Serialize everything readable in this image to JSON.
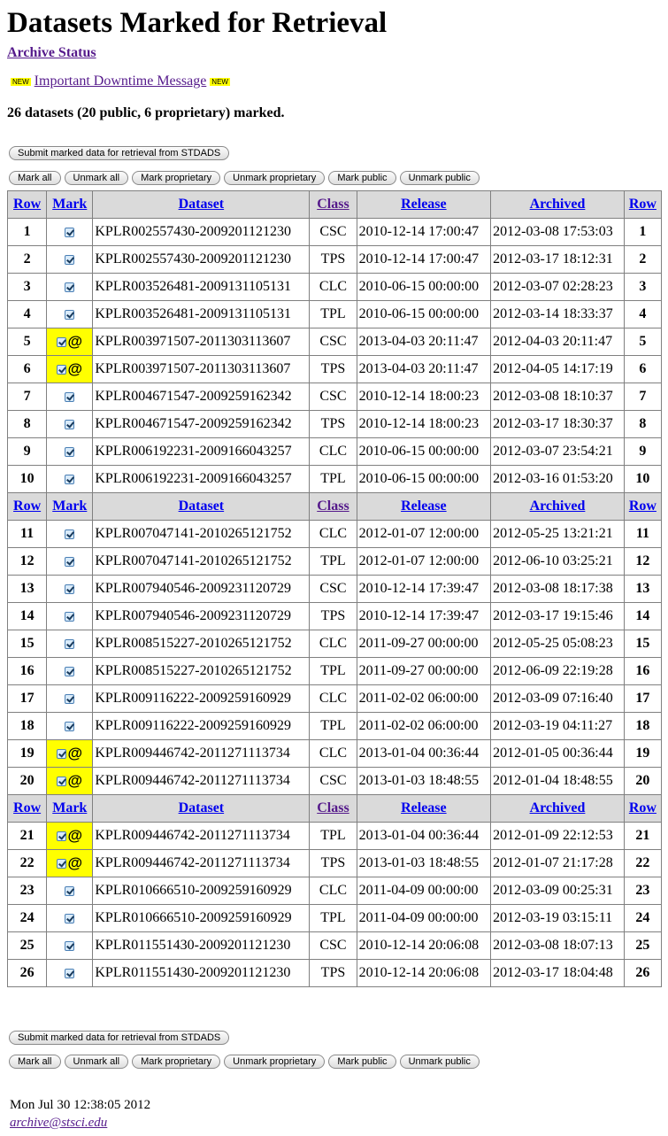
{
  "title": "Datasets Marked for Retrieval",
  "archive_status": "Archive Status",
  "downtime": {
    "badge": "NEW",
    "link": "Important Downtime Message"
  },
  "summary": "26 datasets (20 public, 6 proprietary) marked.",
  "buttons": {
    "submit": "Submit marked data for retrieval from STDADS",
    "mark_all": "Mark all",
    "unmark_all": "Unmark all",
    "mark_proprietary": "Mark proprietary",
    "unmark_proprietary": "Unmark proprietary",
    "mark_public": "Mark public",
    "unmark_public": "Unmark public"
  },
  "table": {
    "headers": [
      "Row",
      "Mark",
      "Dataset",
      "Class",
      "Release",
      "Archived",
      "Row"
    ],
    "rows": [
      {
        "row": "1",
        "proprietary": false,
        "dataset": "KPLR002557430-2009201121230",
        "class": "CSC",
        "release": "2010-12-14 17:00:47",
        "archived": "2012-03-08 17:53:03"
      },
      {
        "row": "2",
        "proprietary": false,
        "dataset": "KPLR002557430-2009201121230",
        "class": "TPS",
        "release": "2010-12-14 17:00:47",
        "archived": "2012-03-17 18:12:31"
      },
      {
        "row": "3",
        "proprietary": false,
        "dataset": "KPLR003526481-2009131105131",
        "class": "CLC",
        "release": "2010-06-15 00:00:00",
        "archived": "2012-03-07 02:28:23"
      },
      {
        "row": "4",
        "proprietary": false,
        "dataset": "KPLR003526481-2009131105131",
        "class": "TPL",
        "release": "2010-06-15 00:00:00",
        "archived": "2012-03-14 18:33:37"
      },
      {
        "row": "5",
        "proprietary": true,
        "dataset": "KPLR003971507-2011303113607",
        "class": "CSC",
        "release": "2013-04-03 20:11:47",
        "archived": "2012-04-03 20:11:47"
      },
      {
        "row": "6",
        "proprietary": true,
        "dataset": "KPLR003971507-2011303113607",
        "class": "TPS",
        "release": "2013-04-03 20:11:47",
        "archived": "2012-04-05 14:17:19"
      },
      {
        "row": "7",
        "proprietary": false,
        "dataset": "KPLR004671547-2009259162342",
        "class": "CSC",
        "release": "2010-12-14 18:00:23",
        "archived": "2012-03-08 18:10:37"
      },
      {
        "row": "8",
        "proprietary": false,
        "dataset": "KPLR004671547-2009259162342",
        "class": "TPS",
        "release": "2010-12-14 18:00:23",
        "archived": "2012-03-17 18:30:37"
      },
      {
        "row": "9",
        "proprietary": false,
        "dataset": "KPLR006192231-2009166043257",
        "class": "CLC",
        "release": "2010-06-15 00:00:00",
        "archived": "2012-03-07 23:54:21"
      },
      {
        "row": "10",
        "proprietary": false,
        "dataset": "KPLR006192231-2009166043257",
        "class": "TPL",
        "release": "2010-06-15 00:00:00",
        "archived": "2012-03-16 01:53:20"
      },
      {
        "row": "11",
        "proprietary": false,
        "dataset": "KPLR007047141-2010265121752",
        "class": "CLC",
        "release": "2012-01-07 12:00:00",
        "archived": "2012-05-25 13:21:21"
      },
      {
        "row": "12",
        "proprietary": false,
        "dataset": "KPLR007047141-2010265121752",
        "class": "TPL",
        "release": "2012-01-07 12:00:00",
        "archived": "2012-06-10 03:25:21"
      },
      {
        "row": "13",
        "proprietary": false,
        "dataset": "KPLR007940546-2009231120729",
        "class": "CSC",
        "release": "2010-12-14 17:39:47",
        "archived": "2012-03-08 18:17:38"
      },
      {
        "row": "14",
        "proprietary": false,
        "dataset": "KPLR007940546-2009231120729",
        "class": "TPS",
        "release": "2010-12-14 17:39:47",
        "archived": "2012-03-17 19:15:46"
      },
      {
        "row": "15",
        "proprietary": false,
        "dataset": "KPLR008515227-2010265121752",
        "class": "CLC",
        "release": "2011-09-27 00:00:00",
        "archived": "2012-05-25 05:08:23"
      },
      {
        "row": "16",
        "proprietary": false,
        "dataset": "KPLR008515227-2010265121752",
        "class": "TPL",
        "release": "2011-09-27 00:00:00",
        "archived": "2012-06-09 22:19:28"
      },
      {
        "row": "17",
        "proprietary": false,
        "dataset": "KPLR009116222-2009259160929",
        "class": "CLC",
        "release": "2011-02-02 06:00:00",
        "archived": "2012-03-09 07:16:40"
      },
      {
        "row": "18",
        "proprietary": false,
        "dataset": "KPLR009116222-2009259160929",
        "class": "TPL",
        "release": "2011-02-02 06:00:00",
        "archived": "2012-03-19 04:11:27"
      },
      {
        "row": "19",
        "proprietary": true,
        "dataset": "KPLR009446742-2011271113734",
        "class": "CLC",
        "release": "2013-01-04 00:36:44",
        "archived": "2012-01-05 00:36:44"
      },
      {
        "row": "20",
        "proprietary": true,
        "dataset": "KPLR009446742-2011271113734",
        "class": "CSC",
        "release": "2013-01-03 18:48:55",
        "archived": "2012-01-04 18:48:55"
      },
      {
        "row": "21",
        "proprietary": true,
        "dataset": "KPLR009446742-2011271113734",
        "class": "TPL",
        "release": "2013-01-04 00:36:44",
        "archived": "2012-01-09 22:12:53"
      },
      {
        "row": "22",
        "proprietary": true,
        "dataset": "KPLR009446742-2011271113734",
        "class": "TPS",
        "release": "2013-01-03 18:48:55",
        "archived": "2012-01-07 21:17:28"
      },
      {
        "row": "23",
        "proprietary": false,
        "dataset": "KPLR010666510-2009259160929",
        "class": "CLC",
        "release": "2011-04-09 00:00:00",
        "archived": "2012-03-09 00:25:31"
      },
      {
        "row": "24",
        "proprietary": false,
        "dataset": "KPLR010666510-2009259160929",
        "class": "TPL",
        "release": "2011-04-09 00:00:00",
        "archived": "2012-03-19 03:15:11"
      },
      {
        "row": "25",
        "proprietary": false,
        "dataset": "KPLR011551430-2009201121230",
        "class": "CSC",
        "release": "2010-12-14 20:06:08",
        "archived": "2012-03-08 18:07:13"
      },
      {
        "row": "26",
        "proprietary": false,
        "dataset": "KPLR011551430-2009201121230",
        "class": "TPS",
        "release": "2010-12-14 20:06:08",
        "archived": "2012-03-17 18:04:48"
      }
    ]
  },
  "footer": {
    "timestamp": "Mon Jul 30 12:38:05 2012",
    "email": "archive@stsci.edu"
  },
  "colors": {
    "proprietary_highlight": "#ffff00",
    "header_bg": "#dadada",
    "visited_link": "#551a8b"
  }
}
